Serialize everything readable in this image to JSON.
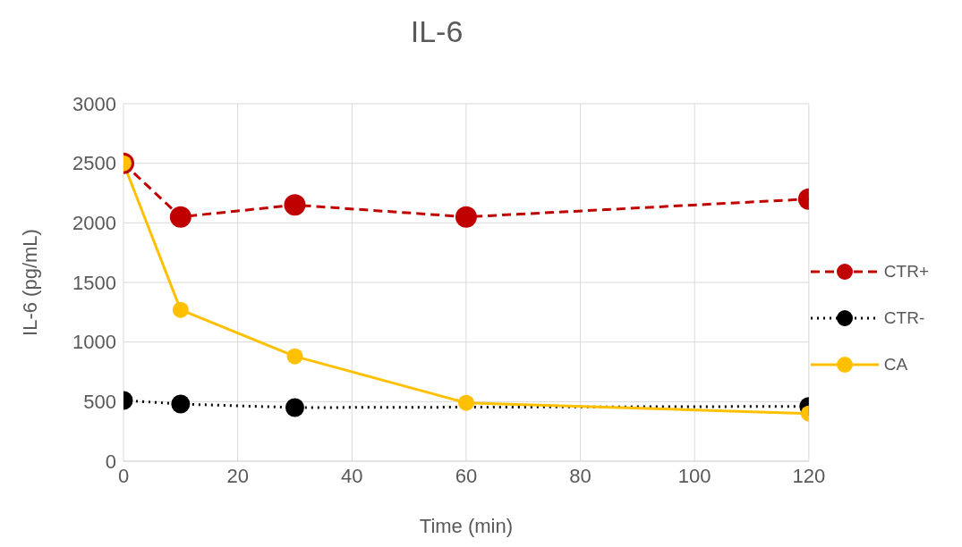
{
  "chart_data": {
    "type": "line",
    "title": "IL-6",
    "xlabel": "Time (min)",
    "ylabel": "IL-6 (pg/mL)",
    "x": [
      0,
      10,
      30,
      60,
      120
    ],
    "series": [
      {
        "name": "CTR+",
        "color": "#c00000",
        "line_style": "dashed",
        "values": [
          2500,
          2050,
          2150,
          2050,
          2200
        ]
      },
      {
        "name": "CTR-",
        "color": "#000000",
        "line_style": "dotted",
        "values": [
          510,
          480,
          450,
          null,
          460
        ]
      },
      {
        "name": "CA",
        "color": "#ffc000",
        "line_style": "solid",
        "values": [
          2500,
          1270,
          880,
          490,
          400
        ]
      }
    ],
    "xlim": [
      0,
      120
    ],
    "xticks": [
      0,
      20,
      40,
      60,
      80,
      100,
      120
    ],
    "ylim": [
      0,
      3000
    ],
    "yticks": [
      0,
      500,
      1000,
      1500,
      2000,
      2500,
      3000
    ],
    "grid": true,
    "legend": "right",
    "marker": "circle"
  }
}
